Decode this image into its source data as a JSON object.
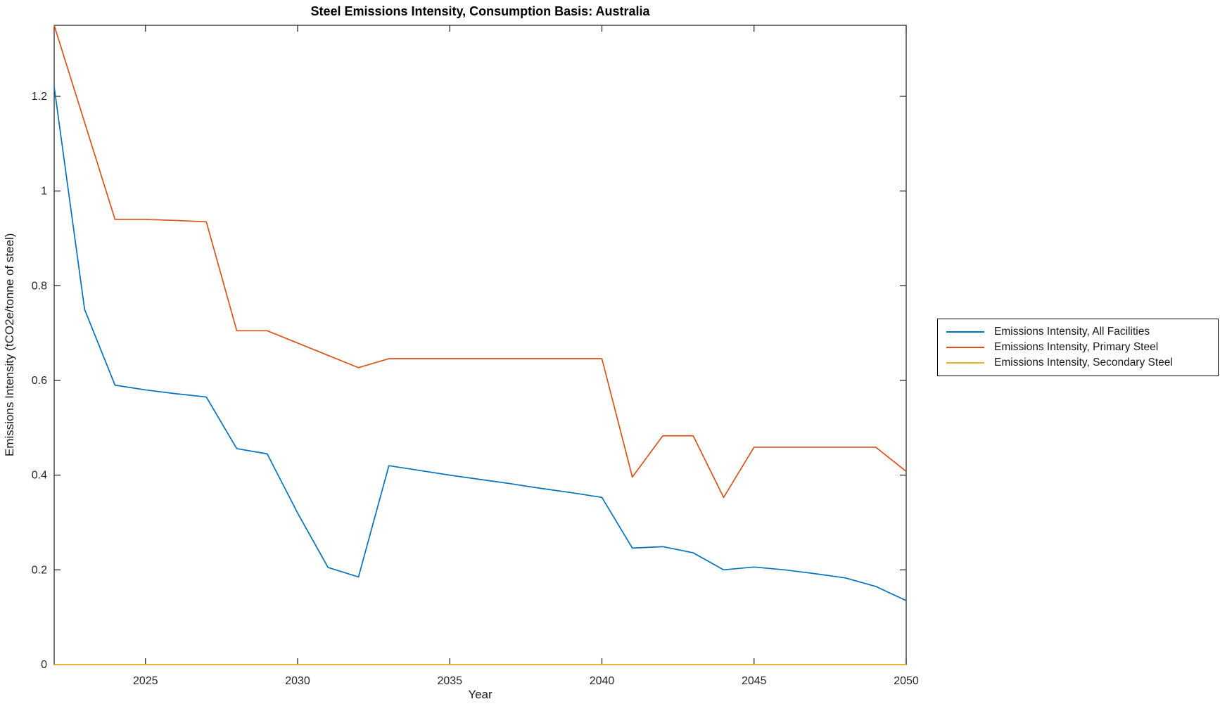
{
  "window": {
    "background": "#ffffff"
  },
  "chart_data": {
    "type": "line",
    "title": "Steel Emissions Intensity, Consumption Basis: Australia",
    "xlabel": "Year",
    "ylabel": "Emissions Intensity (tCO2e/tonne of steel)",
    "xlim": [
      2022,
      2050
    ],
    "ylim": [
      0,
      1.35
    ],
    "xticks": [
      2025,
      2030,
      2035,
      2040,
      2045,
      2050
    ],
    "yticks": [
      "0",
      "0.2",
      "0.4",
      "0.6",
      "0.8",
      "1",
      "1.2"
    ],
    "grid": false,
    "legend_position": "right-outside",
    "axis_color": "#1a1a1a",
    "tick_label_color": "#262626",
    "x": [
      2022,
      2023,
      2024,
      2025,
      2026,
      2027,
      2028,
      2029,
      2030,
      2031,
      2032,
      2033,
      2034,
      2035,
      2036,
      2037,
      2038,
      2039,
      2040,
      2041,
      2042,
      2043,
      2044,
      2045,
      2046,
      2047,
      2048,
      2049,
      2050
    ],
    "series": [
      {
        "name": "Emissions Intensity, All Facilities",
        "color": "#0072BD",
        "values": [
          1.22,
          0.75,
          0.59,
          0.58,
          0.572,
          0.565,
          0.456,
          0.445,
          0.32,
          0.205,
          0.185,
          0.42,
          0.41,
          0.4,
          0.391,
          0.382,
          0.372,
          0.363,
          0.353,
          0.246,
          0.249,
          0.236,
          0.2,
          0.206,
          0.2,
          0.192,
          0.183,
          0.165,
          0.135
        ]
      },
      {
        "name": "Emissions Intensity, Primary Steel",
        "color": "#D95319",
        "values": [
          1.35,
          1.145,
          0.94,
          0.94,
          0.938,
          0.935,
          0.705,
          0.705,
          0.679,
          0.653,
          0.627,
          0.646,
          0.646,
          0.646,
          0.646,
          0.646,
          0.646,
          0.646,
          0.646,
          0.396,
          0.483,
          0.483,
          0.353,
          0.459,
          0.459,
          0.459,
          0.459,
          0.459,
          0.408
        ]
      },
      {
        "name": "Emissions Intensity, Secondary Steel",
        "color": "#EDB120",
        "values": [
          0,
          0,
          0,
          0,
          0,
          0,
          0,
          0,
          0,
          0,
          0,
          0,
          0,
          0,
          0,
          0,
          0,
          0,
          0,
          0,
          0,
          0,
          0,
          0,
          0,
          0,
          0,
          0,
          0
        ]
      }
    ]
  }
}
